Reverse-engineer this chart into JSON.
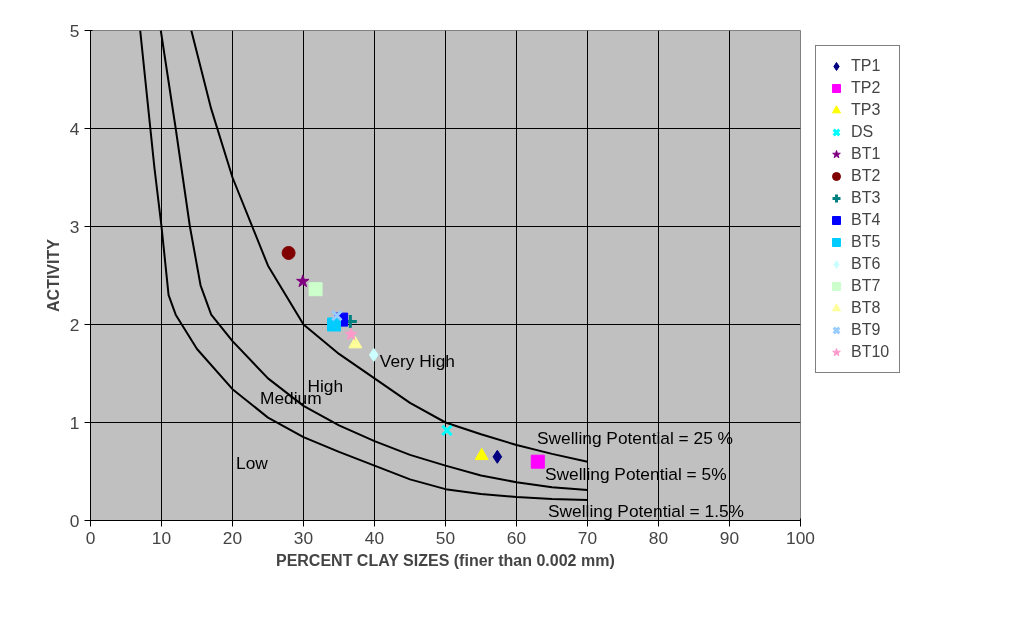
{
  "chart_data": {
    "type": "scatter",
    "xlabel": "PERCENT CLAY SIZES (finer than 0.002 mm)",
    "ylabel": "ACTIVITY",
    "xlim": [
      0,
      100
    ],
    "ylim": [
      0,
      5
    ],
    "xticks": [
      0,
      10,
      20,
      30,
      40,
      50,
      60,
      70,
      80,
      90,
      100
    ],
    "yticks": [
      0,
      1,
      2,
      3,
      4,
      5
    ],
    "grid": true,
    "legend": "right",
    "series": [
      {
        "type": "line",
        "color": "#000000",
        "marker": "none",
        "x": [
          14.2,
          17,
          20,
          25,
          30,
          35,
          40,
          45,
          50,
          55,
          60,
          65,
          70
        ],
        "values": [
          5,
          4.2,
          3.5,
          2.6,
          2.0,
          1.7,
          1.45,
          1.2,
          1.0,
          0.88,
          0.77,
          0.68,
          0.6
        ]
      },
      {
        "type": "line",
        "color": "#000000",
        "marker": "none",
        "x": [
          9.9,
          12,
          14,
          15.5,
          17,
          20,
          25,
          30,
          35,
          40,
          45,
          50,
          55,
          60,
          65,
          70
        ],
        "values": [
          5,
          4,
          3,
          2.4,
          2.1,
          1.83,
          1.45,
          1.17,
          0.97,
          0.81,
          0.67,
          0.56,
          0.46,
          0.39,
          0.34,
          0.31
        ]
      },
      {
        "type": "line",
        "color": "#000000",
        "marker": "none",
        "x": [
          7,
          8,
          9,
          10,
          11,
          12,
          15,
          20,
          25,
          30,
          35,
          40,
          45,
          50,
          55,
          60,
          65,
          70
        ],
        "values": [
          5,
          4.3,
          3.6,
          3.0,
          2.3,
          2.1,
          1.75,
          1.34,
          1.05,
          0.85,
          0.7,
          0.56,
          0.42,
          0.32,
          0.27,
          0.24,
          0.22,
          0.21
        ]
      },
      {
        "name": "TP1",
        "color": "#000080",
        "marker": "diamond",
        "x": [
          57.3
        ],
        "values": [
          0.65
        ]
      },
      {
        "name": "TP2",
        "color": "#ff00ff",
        "marker": "square",
        "x": [
          63.0
        ],
        "values": [
          0.6
        ]
      },
      {
        "name": "TP3",
        "color": "#ffff00",
        "marker": "triangle",
        "x": [
          55.1
        ],
        "values": [
          0.66
        ]
      },
      {
        "name": "DS",
        "color": "#00ffff",
        "marker": "x",
        "x": [
          50.2
        ],
        "values": [
          0.92
        ]
      },
      {
        "name": "BT1",
        "color": "#800080",
        "marker": "star",
        "x": [
          29.9
        ],
        "values": [
          2.44
        ]
      },
      {
        "name": "BT2",
        "color": "#800000",
        "marker": "circle",
        "x": [
          27.9
        ],
        "values": [
          2.73
        ]
      },
      {
        "name": "BT3",
        "color": "#008080",
        "marker": "cross",
        "x": [
          36.6
        ],
        "values": [
          2.03
        ]
      },
      {
        "name": "BT4",
        "color": "#0000ff",
        "marker": "square",
        "x": [
          35.3
        ],
        "values": [
          2.05
        ]
      },
      {
        "name": "BT5",
        "color": "#00ccff",
        "marker": "square",
        "x": [
          34.3
        ],
        "values": [
          2.0
        ]
      },
      {
        "name": "BT6",
        "color": "#ccffff",
        "marker": "diamond",
        "x": [
          39.9
        ],
        "values": [
          1.69
        ]
      },
      {
        "name": "BT7",
        "color": "#ccffcc",
        "marker": "square",
        "x": [
          31.7
        ],
        "values": [
          2.36
        ]
      },
      {
        "name": "BT8",
        "color": "#ffff99",
        "marker": "triangle",
        "x": [
          37.3
        ],
        "values": [
          1.8
        ]
      },
      {
        "name": "BT9",
        "color": "#99ccff",
        "marker": "x",
        "x": [
          34.7
        ],
        "values": [
          2.09
        ]
      },
      {
        "name": "BT10",
        "color": "#ff99cc",
        "marker": "star",
        "x": [
          36.7
        ],
        "values": [
          1.9
        ]
      }
    ],
    "annotations": [
      {
        "text": "Very High",
        "x": 39.9,
        "y": 1.69
      },
      {
        "text": "High",
        "x": 30,
        "y": 1.17
      },
      {
        "text": "Medium",
        "x": 25,
        "y": 1.05
      },
      {
        "text": "Low",
        "x": 25,
        "y": 1.05
      },
      {
        "text": "Swelling Potential = 25 %",
        "x": 65,
        "y": 0.68
      },
      {
        "text": "Swelling Potential = 5%",
        "x": 65,
        "y": 0.34
      },
      {
        "text": "Swelling Potential = 1.5%",
        "x": 65,
        "y": 0.22
      }
    ]
  }
}
